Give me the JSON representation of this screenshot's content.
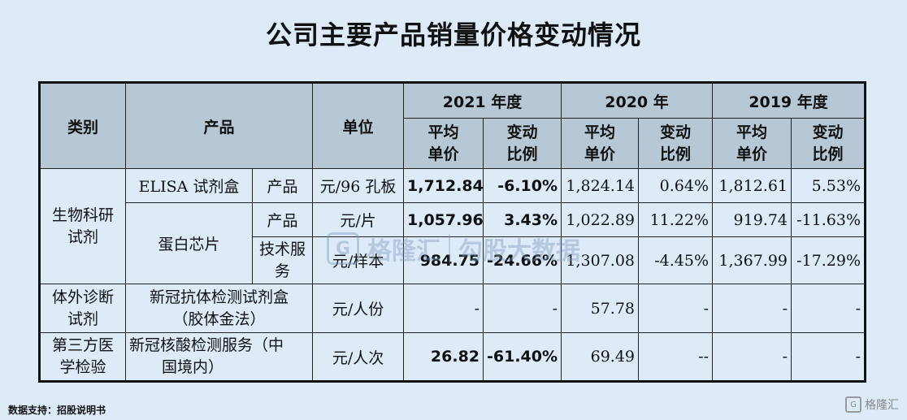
{
  "title": "公司主要产品销量价格变动情况",
  "header": {
    "category": "类别",
    "product": "产品",
    "unit": "单位",
    "y2021": "2021 年度",
    "y2020": "2020 年",
    "y2019": "2019 年度",
    "avg_price": [
      "平均",
      "单价"
    ],
    "change_ratio": [
      "变动",
      "比例"
    ]
  },
  "rows": {
    "cat1": [
      "生物科研",
      "试剂"
    ],
    "cat2": [
      "体外诊断",
      "试剂"
    ],
    "cat3": [
      "第三方医",
      "学检验"
    ],
    "r1": {
      "product": "ELISA 试剂盒",
      "sub": "产品",
      "unit": "元/96 孔板",
      "p2021": "1,712.84",
      "c2021": "-6.10%",
      "p2020": "1,824.14",
      "c2020": "0.64%",
      "p2019": "1,812.61",
      "c2019": "5.53%"
    },
    "chip": "蛋白芯片",
    "r2": {
      "sub": "产品",
      "unit": "元/片",
      "p2021": "1,057.96",
      "c2021": "3.43%",
      "p2020": "1,022.89",
      "c2020": "11.22%",
      "p2019": "919.74",
      "c2019": "-11.63%"
    },
    "r3": {
      "sub": [
        "技术服",
        "务"
      ],
      "unit": "元/样本",
      "p2021": "984.75",
      "c2021": "-24.66%",
      "p2020": "1,307.08",
      "c2020": "-4.45%",
      "p2019": "1,367.99",
      "c2019": "-17.29%"
    },
    "r4": {
      "product": [
        "新冠抗体检测试剂盒",
        "（胶体金法）"
      ],
      "unit": "元/人份",
      "p2021": "-",
      "c2021": "-",
      "p2020": "57.78",
      "c2020": "-",
      "p2019": "-",
      "c2019": "-"
    },
    "r5": {
      "product": [
        "新冠核酸检测服务（中",
        "国境内）"
      ],
      "unit": "元/人次",
      "p2021": "26.82",
      "c2021": "-61.40%",
      "p2020": "69.49",
      "c2020": "--",
      "p2019": "-",
      "c2019": "-"
    }
  },
  "footer": "数据支持：招股说明书",
  "watermark": {
    "brand": "格隆汇",
    "sub": "勾股大数据",
    "logo_char": "G"
  },
  "corner_logo": {
    "char": "G",
    "text": "格隆汇"
  }
}
